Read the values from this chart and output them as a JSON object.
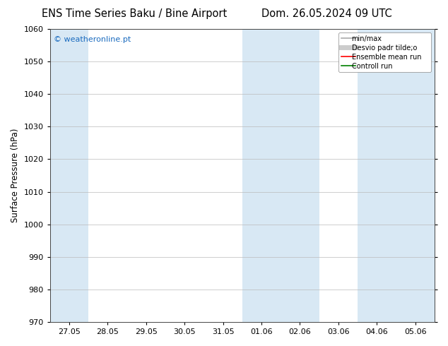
{
  "title_left": "ENS Time Series Baku / Bine Airport",
  "title_right": "Dom. 26.05.2024 09 UTC",
  "ylabel": "Surface Pressure (hPa)",
  "ylim": [
    970,
    1060
  ],
  "yticks": [
    970,
    980,
    990,
    1000,
    1010,
    1020,
    1030,
    1040,
    1050,
    1060
  ],
  "xtick_labels": [
    "27.05",
    "28.05",
    "29.05",
    "30.05",
    "31.05",
    "01.06",
    "02.06",
    "03.06",
    "04.06",
    "05.06"
  ],
  "shade_color": "#d8e8f4",
  "watermark": "© weatheronline.pt",
  "watermark_color": "#1a6bbf",
  "legend_items": [
    {
      "label": "min/max",
      "color": "#aaaaaa",
      "lw": 1.2
    },
    {
      "label": "Desvio padr tilde;o",
      "color": "#cccccc",
      "lw": 5
    },
    {
      "label": "Ensemble mean run",
      "color": "red",
      "lw": 1.2
    },
    {
      "label": "Controll run",
      "color": "green",
      "lw": 1.2
    }
  ],
  "background_color": "#ffffff",
  "plot_bg_color": "#ffffff",
  "title_fontsize": 10.5,
  "axis_fontsize": 8.5,
  "tick_fontsize": 8
}
